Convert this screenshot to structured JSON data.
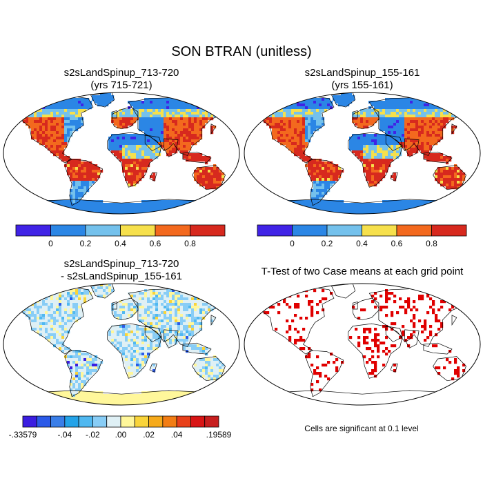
{
  "figure": {
    "title": "SON BTRAN (unitless)"
  },
  "chart_data": [
    {
      "type": "heatmap",
      "title_line1": "s2sLandSpinup_713-720",
      "title_line2": "(yrs 715-721)",
      "colorbar": {
        "colors": [
          "#4023e6",
          "#2b86e5",
          "#74c1ec",
          "#f6e04c",
          "#f3691e",
          "#d7291e"
        ],
        "tick_labels": [
          "0",
          "0.2",
          "0.4",
          "0.6",
          "0.8"
        ]
      }
    },
    {
      "type": "heatmap",
      "title_line1": "s2sLandSpinup_155-161",
      "title_line2": "(yrs 155-161)",
      "colorbar": {
        "colors": [
          "#4023e6",
          "#2b86e5",
          "#74c1ec",
          "#f6e04c",
          "#f3691e",
          "#d7291e"
        ],
        "tick_labels": [
          "0",
          "0.2",
          "0.4",
          "0.6",
          "0.8"
        ]
      }
    },
    {
      "type": "heatmap",
      "title_line1": "s2sLandSpinup_713-720",
      "title_line2": "- s2sLandSpinup_155-161",
      "colorbar": {
        "colors": [
          "#3b1ee0",
          "#2b5ae8",
          "#3a7ee8",
          "#24a3e8",
          "#50b8f0",
          "#88cdf6",
          "#dff0f5",
          "#fff79b",
          "#f9d43a",
          "#f6aa1b",
          "#f27d14",
          "#e8401a",
          "#d81515",
          "#c71e1e"
        ],
        "tick_labels": [
          "-.33579",
          "-.04",
          "-.02",
          ".00",
          ".02",
          ".04",
          ".19589"
        ]
      }
    },
    {
      "type": "heatmap",
      "title_line1": "T-Test of two Case means at each grid point",
      "footnote": "Cells are significant at 0.1 level",
      "mark_color": "#e00000"
    }
  ]
}
